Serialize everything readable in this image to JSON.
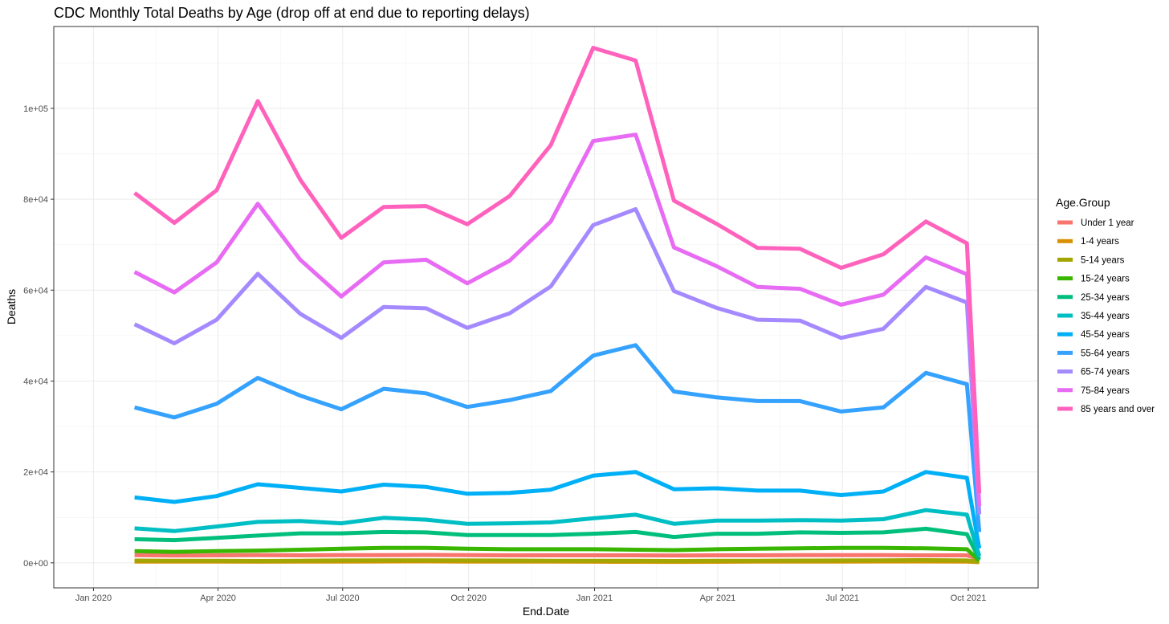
{
  "chart_data": {
    "type": "line",
    "title": "CDC Monthly Total Deaths by Age (drop off at end due to reporting delays)",
    "xlabel": "End.Date",
    "ylabel": "Deaths",
    "x": [
      "2020-01-31",
      "2020-02-29",
      "2020-03-31",
      "2020-04-30",
      "2020-05-31",
      "2020-06-30",
      "2020-07-31",
      "2020-08-31",
      "2020-09-30",
      "2020-10-31",
      "2020-11-30",
      "2020-12-31",
      "2021-01-31",
      "2021-02-28",
      "2021-03-31",
      "2021-04-30",
      "2021-05-31",
      "2021-06-30",
      "2021-07-31",
      "2021-08-31",
      "2021-09-30",
      "2021-10-09"
    ],
    "x_ticks": [
      "Jan 2020",
      "Apr 2020",
      "Jul 2020",
      "Oct 2020",
      "Jan 2021",
      "Apr 2021",
      "Jul 2021",
      "Oct 2021"
    ],
    "y_ticks": [
      "0e+00",
      "2e+04",
      "4e+04",
      "6e+04",
      "8e+04",
      "1e+05"
    ],
    "ylim": [
      -5500,
      118000
    ],
    "grid": true,
    "legend_title": "Age.Group",
    "legend_position": "right",
    "series": [
      {
        "name": "Under 1 year",
        "color": "#F8766D",
        "values": [
          1700,
          1600,
          1650,
          1700,
          1650,
          1700,
          1700,
          1750,
          1700,
          1650,
          1650,
          1650,
          1650,
          1600,
          1650,
          1650,
          1700,
          1700,
          1700,
          1650,
          1650,
          900
        ]
      },
      {
        "name": "1-4 years",
        "color": "#D89000",
        "values": [
          300,
          280,
          290,
          260,
          280,
          300,
          320,
          330,
          300,
          290,
          280,
          260,
          250,
          230,
          250,
          270,
          290,
          300,
          310,
          320,
          300,
          150
        ]
      },
      {
        "name": "5-14 years",
        "color": "#A3A500",
        "values": [
          500,
          470,
          480,
          420,
          480,
          530,
          550,
          560,
          530,
          510,
          480,
          460,
          450,
          420,
          450,
          480,
          500,
          520,
          560,
          590,
          520,
          250
        ]
      },
      {
        "name": "15-24 years",
        "color": "#39B600",
        "values": [
          2600,
          2400,
          2600,
          2700,
          2900,
          3100,
          3300,
          3300,
          3100,
          3000,
          3000,
          3000,
          2900,
          2800,
          3000,
          3100,
          3200,
          3300,
          3300,
          3200,
          3000,
          500
        ]
      },
      {
        "name": "25-34 years",
        "color": "#00BF7D",
        "values": [
          5200,
          5000,
          5500,
          6000,
          6500,
          6500,
          6800,
          6700,
          6100,
          6100,
          6100,
          6400,
          6800,
          5700,
          6400,
          6400,
          6700,
          6600,
          6700,
          7500,
          6300,
          800
        ]
      },
      {
        "name": "35-44 years",
        "color": "#00BFC4",
        "values": [
          7600,
          7000,
          8000,
          9000,
          9200,
          8700,
          9900,
          9500,
          8600,
          8700,
          8900,
          9800,
          10600,
          8600,
          9300,
          9300,
          9400,
          9300,
          9600,
          11600,
          10600,
          1500
        ]
      },
      {
        "name": "45-54 years",
        "color": "#00B0F6",
        "values": [
          14400,
          13400,
          14700,
          17300,
          16500,
          15700,
          17200,
          16700,
          15200,
          15400,
          16100,
          19200,
          20000,
          16200,
          16400,
          15900,
          15900,
          14900,
          15700,
          20000,
          18700,
          3200
        ]
      },
      {
        "name": "55-64 years",
        "color": "#35A2FF",
        "values": [
          34200,
          32000,
          35000,
          40700,
          36800,
          33800,
          38300,
          37300,
          34300,
          35800,
          37800,
          45600,
          47900,
          37700,
          36400,
          35600,
          35600,
          33300,
          34200,
          41800,
          39300,
          6800
        ]
      },
      {
        "name": "65-74 years",
        "color": "#A58AFF",
        "values": [
          52500,
          48300,
          53500,
          63600,
          54800,
          49500,
          56300,
          56000,
          51700,
          54900,
          60800,
          74300,
          77800,
          59800,
          56100,
          53500,
          53300,
          49500,
          51500,
          60700,
          57300,
          10700
        ]
      },
      {
        "name": "75-84 years",
        "color": "#E76BF3",
        "values": [
          64000,
          59500,
          66100,
          79000,
          66700,
          58600,
          66100,
          66700,
          61500,
          66500,
          75100,
          92800,
          94200,
          69400,
          65300,
          60700,
          60300,
          56800,
          59000,
          67200,
          63500,
          12500
        ]
      },
      {
        "name": "85 years and over",
        "color": "#FF62BC",
        "values": [
          81400,
          74800,
          82000,
          101600,
          84300,
          71500,
          78300,
          78500,
          74500,
          80700,
          91900,
          113300,
          110500,
          79700,
          74600,
          69300,
          69100,
          64900,
          67900,
          75100,
          70300,
          15300
        ]
      }
    ]
  }
}
